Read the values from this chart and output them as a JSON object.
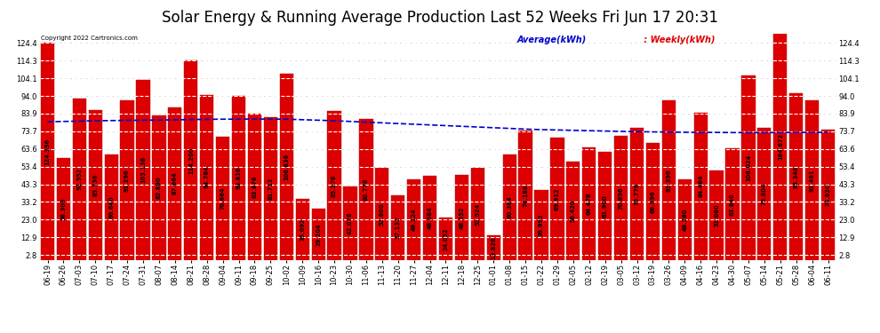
{
  "title": "Solar Energy & Running Average Production Last 52 Weeks Fri Jun 17 20:31",
  "copyright": "Copyright 2022 Cartronics.com",
  "legend_avg": "Average(kWh)",
  "legend_weekly": "Weekly(kWh)",
  "bar_color": "#dd0000",
  "bar_edgecolor": "#aa0000",
  "avg_line_color": "#0000cc",
  "avg_line_style": "--",
  "background_color": "#ffffff",
  "grid_color": "#bbbbbb",
  "title_fontsize": 12,
  "tick_fontsize": 6.0,
  "label_fontsize": 4.8,
  "ytick_values": [
    2.8,
    12.9,
    23.0,
    33.2,
    43.3,
    53.4,
    63.6,
    73.7,
    83.9,
    94.0,
    104.1,
    114.3,
    124.4
  ],
  "ymax": 130.0,
  "categories": [
    "06-19",
    "06-26",
    "07-03",
    "07-10",
    "07-17",
    "07-24",
    "07-31",
    "08-07",
    "08-14",
    "08-21",
    "08-28",
    "09-04",
    "09-11",
    "09-18",
    "09-25",
    "10-02",
    "10-09",
    "10-16",
    "10-23",
    "10-30",
    "11-06",
    "11-13",
    "11-20",
    "11-27",
    "12-04",
    "12-11",
    "12-18",
    "12-25",
    "01-01",
    "01-08",
    "01-15",
    "01-22",
    "01-29",
    "02-05",
    "02-12",
    "02-19",
    "03-05",
    "03-12",
    "03-19",
    "03-26",
    "04-09",
    "04-16",
    "04-23",
    "04-30",
    "05-07",
    "05-14",
    "05-21",
    "05-28",
    "06-04",
    "06-11"
  ],
  "values": [
    124.396,
    58.308,
    92.552,
    85.736,
    60.64,
    91.296,
    103.138,
    82.88,
    87.664,
    114.2,
    94.764,
    70.664,
    93.816,
    83.876,
    81.712,
    106.836,
    35.092,
    29.204,
    85.276,
    42.076,
    80.776,
    52.6,
    37.132,
    46.124,
    48.084,
    24.052,
    48.552,
    52.524,
    13.828,
    60.364,
    74.188,
    39.992,
    69.912,
    56.42,
    64.476,
    61.9,
    70.896,
    75.776,
    66.996,
    91.396,
    46.28,
    84.464,
    51.08,
    63.84,
    106.024,
    75.804,
    164.672,
    95.348,
    91.461,
    74.62
  ],
  "avg_values": [
    79.2,
    79.4,
    79.6,
    79.8,
    79.9,
    80.0,
    80.1,
    80.2,
    80.3,
    80.5,
    80.6,
    80.7,
    80.7,
    80.8,
    80.7,
    80.7,
    80.4,
    80.1,
    79.8,
    79.4,
    79.0,
    78.6,
    78.2,
    77.8,
    77.4,
    77.0,
    76.6,
    76.2,
    75.8,
    75.4,
    75.0,
    74.7,
    74.5,
    74.3,
    74.1,
    73.9,
    73.7,
    73.5,
    73.4,
    73.3,
    73.2,
    73.1,
    73.1,
    73.0,
    73.0,
    73.0,
    73.0,
    73.1,
    73.1,
    73.2
  ]
}
